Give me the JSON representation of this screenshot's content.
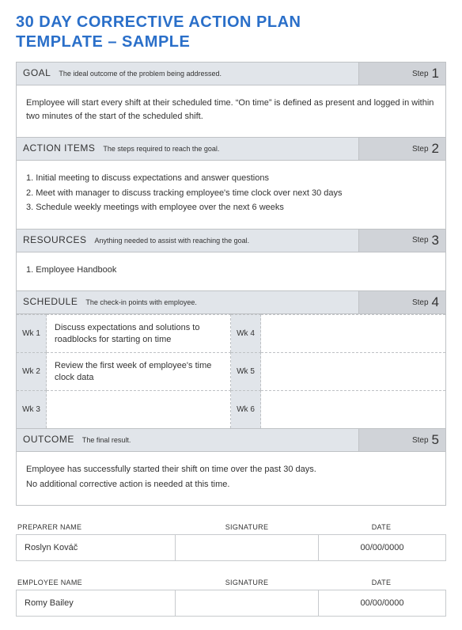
{
  "title_line1": "30 DAY CORRECTIVE ACTION PLAN",
  "title_line2": "TEMPLATE  –  SAMPLE",
  "sections": {
    "goal": {
      "label": "GOAL",
      "desc": "The ideal outcome of the problem being addressed.",
      "step_word": "Step",
      "step_num": "1",
      "body": "Employee will start every shift at their scheduled time. “On time” is defined as present and logged in within two minutes of the start of the scheduled shift."
    },
    "action": {
      "label": "ACTION ITEMS",
      "desc": "The steps required to reach the goal.",
      "step_word": "Step",
      "step_num": "2",
      "lines": [
        "1. Initial meeting to discuss expectations and answer questions",
        "2. Meet with manager to discuss tracking employee's time clock over next 30 days",
        "3. Schedule weekly meetings with employee over the next 6 weeks"
      ]
    },
    "resources": {
      "label": "RESOURCES",
      "desc": "Anything needed to assist with reaching the goal.",
      "step_word": "Step",
      "step_num": "3",
      "lines": [
        "1. Employee Handbook"
      ]
    },
    "schedule": {
      "label": "SCHEDULE",
      "desc": "The check-in points with employee.",
      "step_word": "Step",
      "step_num": "4",
      "weeks": [
        {
          "label": "Wk 1",
          "text": "Discuss expectations and solutions to roadblocks for starting on time"
        },
        {
          "label": "Wk 4",
          "text": ""
        },
        {
          "label": "Wk 2",
          "text": "Review the first week of employee's time clock data"
        },
        {
          "label": "Wk 5",
          "text": ""
        },
        {
          "label": "Wk 3",
          "text": ""
        },
        {
          "label": "Wk 6",
          "text": ""
        }
      ]
    },
    "outcome": {
      "label": "OUTCOME",
      "desc": "The final result.",
      "step_word": "Step",
      "step_num": "5",
      "lines": [
        "Employee has successfully started their shift on time over the past 30 days.",
        "No additional corrective action is needed at this time."
      ]
    }
  },
  "sign": {
    "preparer": {
      "hname": "PREPARER NAME",
      "hsig": "SIGNATURE",
      "hdate": "DATE",
      "name": "Roslyn Kováč",
      "sig": "",
      "date": "00/00/0000"
    },
    "employee": {
      "hname": "EMPLOYEE NAME",
      "hsig": "SIGNATURE",
      "hdate": "DATE",
      "name": "Romy Bailey",
      "sig": "",
      "date": "00/00/0000"
    }
  },
  "colors": {
    "title": "#2a6fc9",
    "header_bg": "#e1e5ea",
    "step_bg": "#d0d3d8",
    "border": "#bfc2c5"
  }
}
